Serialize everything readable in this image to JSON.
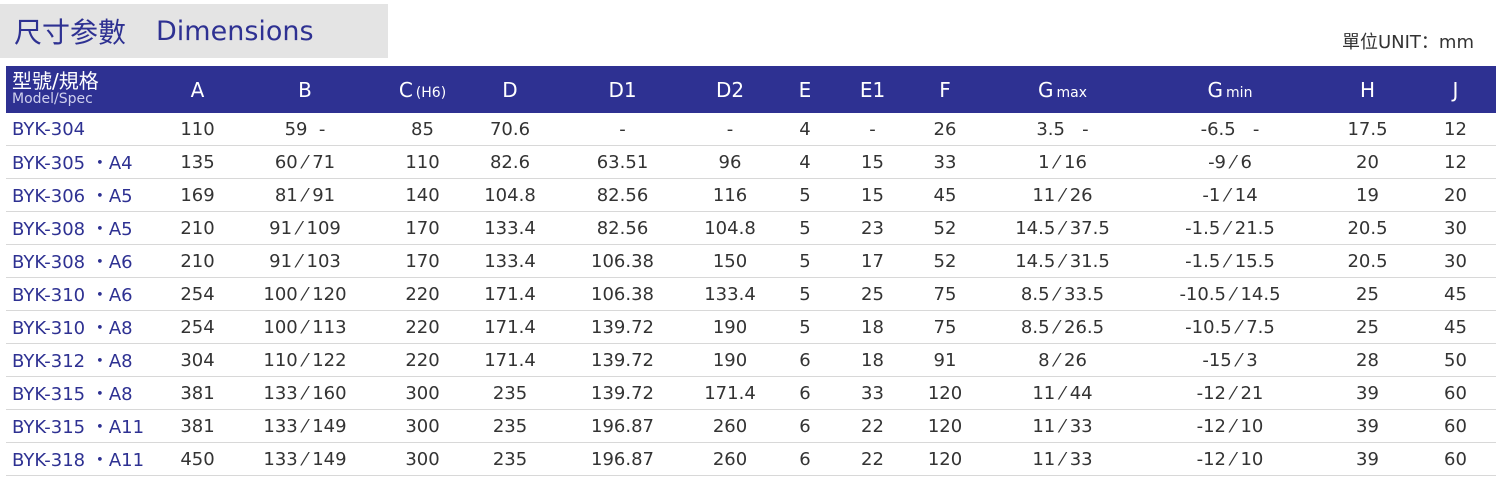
{
  "header": {
    "title_cn": "尺寸参數",
    "title_en": "Dimensions",
    "unit": "單位UNIT：mm"
  },
  "table": {
    "columns": [
      {
        "main": "型號/規格",
        "sub": "Model/Spec"
      },
      {
        "main": "A"
      },
      {
        "main": "B"
      },
      {
        "main": "C",
        "sub": "(H6)"
      },
      {
        "main": "D"
      },
      {
        "main": "D1"
      },
      {
        "main": "D2"
      },
      {
        "main": "E"
      },
      {
        "main": "E1"
      },
      {
        "main": "F"
      },
      {
        "main": "G",
        "sub": "max"
      },
      {
        "main": "G",
        "sub": "min"
      },
      {
        "main": "H"
      },
      {
        "main": "J"
      }
    ],
    "rows": [
      [
        "BYK-304",
        "110",
        "59  -",
        "85",
        "70.6",
        "-",
        "-",
        "4",
        "-",
        "26",
        "3.5   -",
        "-6.5   -",
        "17.5",
        "12"
      ],
      [
        "BYK-305 ・A4",
        "135",
        "60 ⁄ 71",
        "110",
        "82.6",
        "63.51",
        "96",
        "4",
        "15",
        "33",
        "1 ⁄ 16",
        "-9 ⁄ 6",
        "20",
        "12"
      ],
      [
        "BYK-306 ・A5",
        "169",
        "81 ⁄ 91",
        "140",
        "104.8",
        "82.56",
        "116",
        "5",
        "15",
        "45",
        "11 ⁄ 26",
        "-1 ⁄ 14",
        "19",
        "20"
      ],
      [
        "BYK-308 ・A5",
        "210",
        "91 ⁄ 109",
        "170",
        "133.4",
        "82.56",
        "104.8",
        "5",
        "23",
        "52",
        "14.5 ⁄ 37.5",
        "-1.5 ⁄ 21.5",
        "20.5",
        "30"
      ],
      [
        "BYK-308 ・A6",
        "210",
        "91 ⁄ 103",
        "170",
        "133.4",
        "106.38",
        "150",
        "5",
        "17",
        "52",
        "14.5 ⁄ 31.5",
        "-1.5 ⁄ 15.5",
        "20.5",
        "30"
      ],
      [
        "BYK-310 ・A6",
        "254",
        "100 ⁄ 120",
        "220",
        "171.4",
        "106.38",
        "133.4",
        "5",
        "25",
        "75",
        "8.5 ⁄ 33.5",
        "-10.5 ⁄ 14.5",
        "25",
        "45"
      ],
      [
        "BYK-310 ・A8",
        "254",
        "100 ⁄ 113",
        "220",
        "171.4",
        "139.72",
        "190",
        "5",
        "18",
        "75",
        "8.5 ⁄ 26.5",
        "-10.5 ⁄ 7.5",
        "25",
        "45"
      ],
      [
        "BYK-312 ・A8",
        "304",
        "110 ⁄ 122",
        "220",
        "171.4",
        "139.72",
        "190",
        "6",
        "18",
        "91",
        "8 ⁄ 26",
        "-15 ⁄ 3",
        "28",
        "50"
      ],
      [
        "BYK-315 ・A8",
        "381",
        "133 ⁄ 160",
        "300",
        "235",
        "139.72",
        "171.4",
        "6",
        "33",
        "120",
        "11 ⁄ 44",
        "-12 ⁄ 21",
        "39",
        "60"
      ],
      [
        "BYK-315 ・A11",
        "381",
        "133 ⁄ 149",
        "300",
        "235",
        "196.87",
        "260",
        "6",
        "22",
        "120",
        "11 ⁄ 33",
        "-12 ⁄ 10",
        "39",
        "60"
      ],
      [
        "BYK-318 ・A11",
        "450",
        "133 ⁄ 149",
        "300",
        "235",
        "196.87",
        "260",
        "6",
        "22",
        "120",
        "11 ⁄ 33",
        "-12 ⁄ 10",
        "39",
        "60"
      ]
    ]
  }
}
